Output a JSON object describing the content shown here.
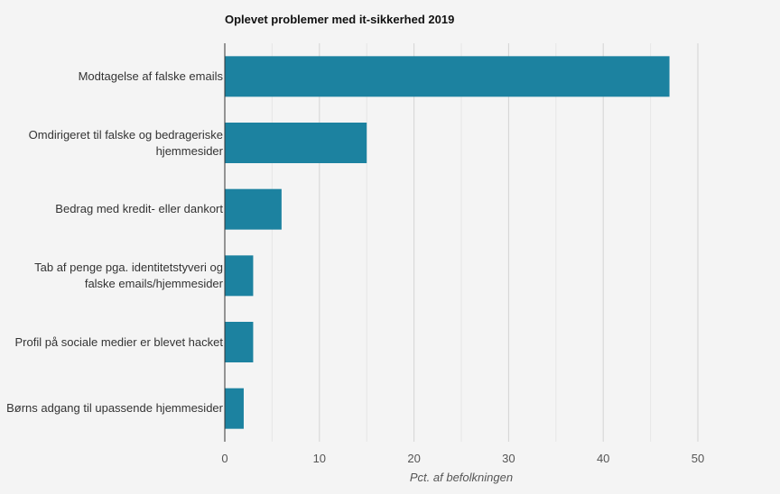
{
  "chart_data": {
    "type": "bar",
    "orientation": "horizontal",
    "title": "Oplevet problemer med it-sikkerhed 2019",
    "xlabel": "Pct. af befolkningen",
    "ylabel": "",
    "xlim": [
      0,
      50
    ],
    "xticks": [
      0,
      10,
      20,
      30,
      40,
      50
    ],
    "grid": true,
    "bar_color": "#1c82a0",
    "categories": [
      "Modtagelse af falske emails",
      "Omdirigeret til falske og bedrageriske hjemmesider",
      "Bedrag med kredit- eller dankort",
      "Tab af penge pga. identitetstyveri og falske emails/hjemmesider",
      "Profil på sociale medier er blevet hacket",
      "Børns adgang til upassende hjemmesider"
    ],
    "values": [
      47,
      15,
      6,
      3,
      3,
      2
    ]
  }
}
